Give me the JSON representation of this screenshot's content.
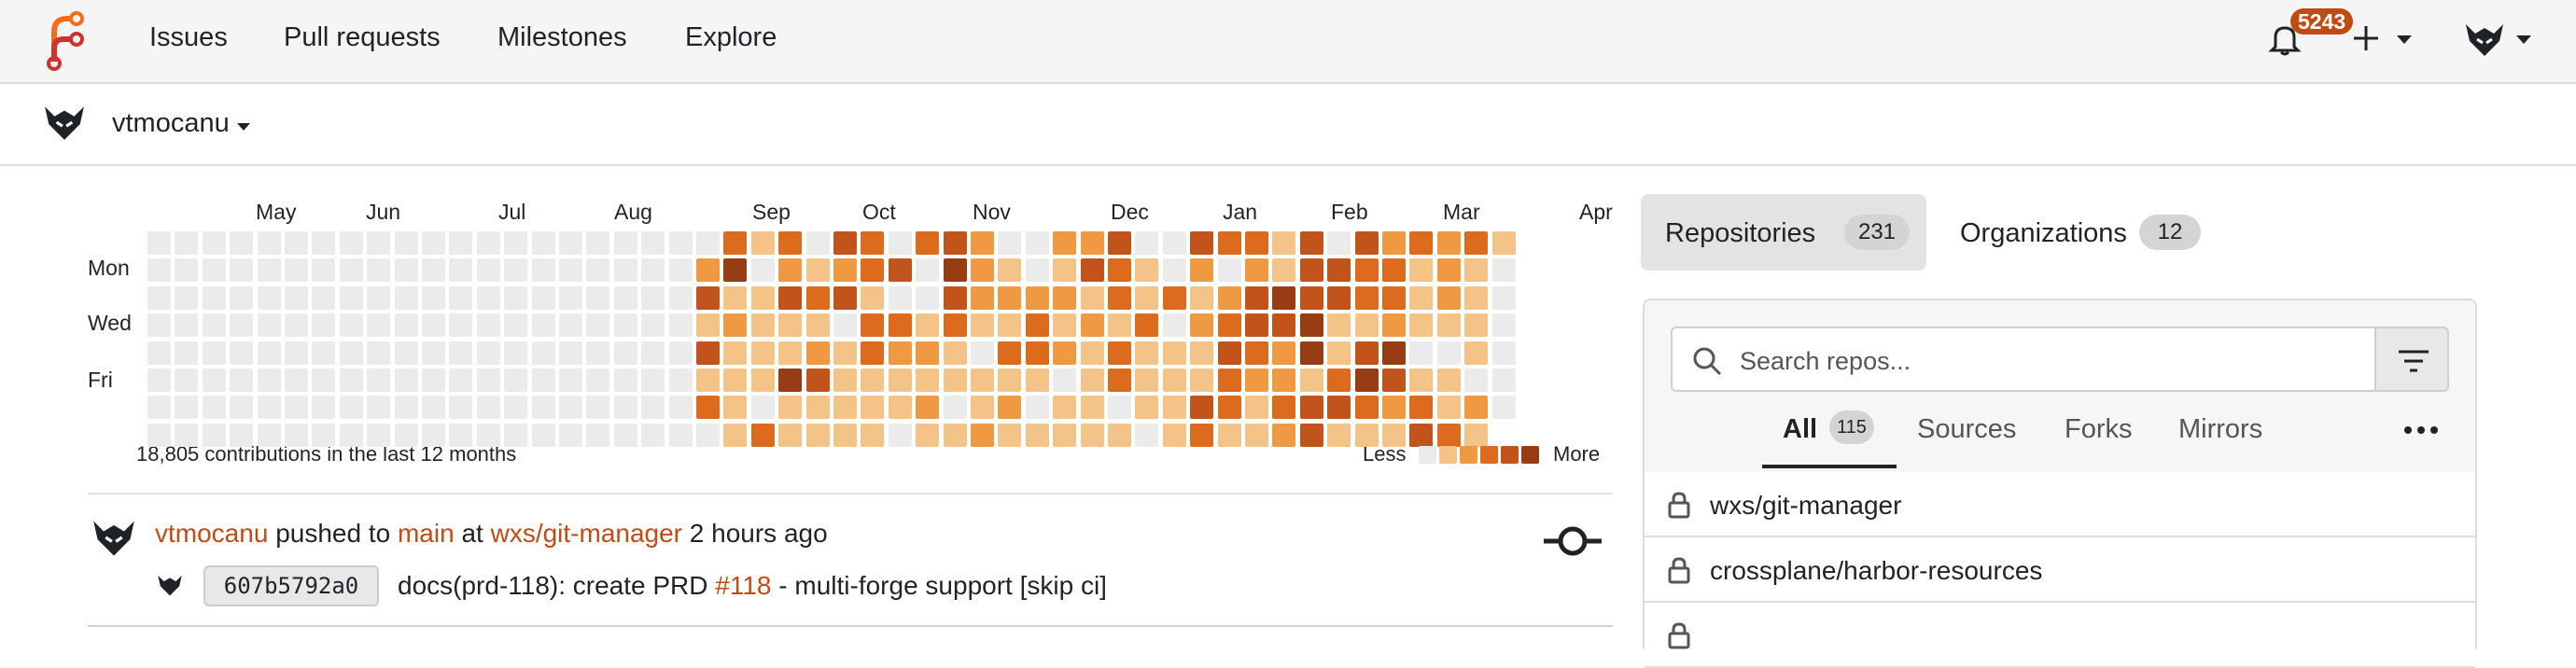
{
  "navbar": {
    "links": [
      "Issues",
      "Pull requests",
      "Milestones",
      "Explore"
    ],
    "notification_count": "5243",
    "brand_color": "#c24b14"
  },
  "context": {
    "user": "vtmocanu"
  },
  "heatmap": {
    "months": [
      "May",
      "Jun",
      "Jul",
      "Aug",
      "Sep",
      "Oct",
      "Nov",
      "Dec",
      "Jan",
      "Feb",
      "Mar",
      "Apr"
    ],
    "day_labels": [
      "Mon",
      "Wed",
      "Fri"
    ],
    "summary": "18,805 contributions in the last 12 months",
    "legend_less": "Less",
    "legend_more": "More",
    "level_colors": [
      "#ebebeb",
      "#f4c387",
      "#ef9943",
      "#dd6b1d",
      "#c2531a",
      "#973c13"
    ],
    "levels": [
      "00000000000000000000031304303420022400433140423231",
      "00000000000000000000250212340521014310202144331210",
      "00000000000000000000411434100422221313124544331210",
      "00000000000000000000121110331311312130234451121110",
      "00000000000000000000411121322103321311143251450010",
      "00000000000000000000111541111111101311132213541100",
      "00000000000000000000310111112012011011431344323120",
      "00000000000000000000013111101121111101311241114310"
    ]
  },
  "feed": {
    "actor": "vtmocanu",
    "verb": "pushed to",
    "branch": "main",
    "at": "at",
    "repo": "wxs/git-manager",
    "time": "2 hours ago",
    "sha": "607b5792a0",
    "message_prefix": "docs(prd-118): create PRD",
    "issue_ref": "#118",
    "message_suffix": "- multi-forge support [skip ci]"
  },
  "repo_panel": {
    "tabs": [
      {
        "label": "Repositories",
        "count": "231"
      },
      {
        "label": "Organizations",
        "count": "12"
      }
    ],
    "search_placeholder": "Search repos...",
    "filters": [
      {
        "label": "All",
        "count": "115"
      },
      {
        "label": "Sources"
      },
      {
        "label": "Forks"
      },
      {
        "label": "Mirrors"
      }
    ],
    "repos": [
      "wxs/git-manager",
      "crossplane/harbor-resources"
    ]
  }
}
